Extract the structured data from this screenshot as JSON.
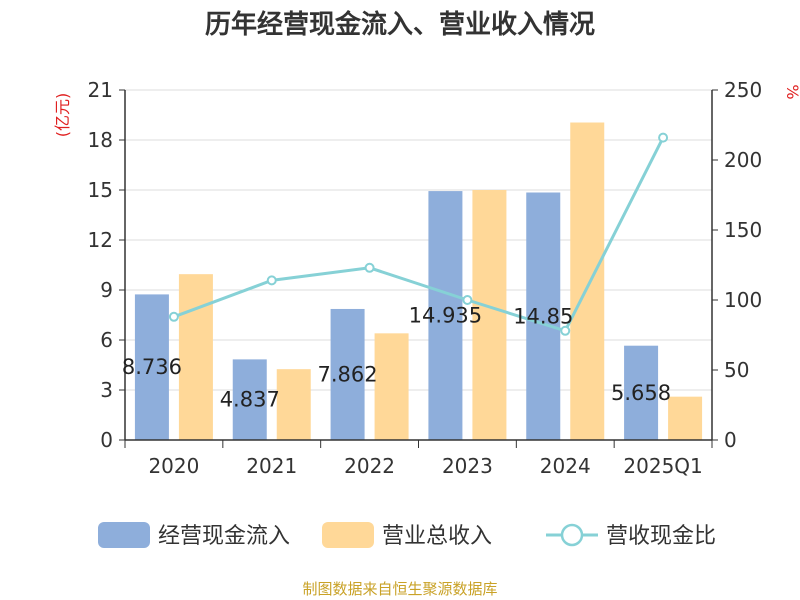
{
  "chart_data": {
    "type": "bar",
    "title": "历年经营现金流入、营业收入情况",
    "categories": [
      "2020",
      "2021",
      "2022",
      "2023",
      "2024",
      "2025Q1"
    ],
    "y_left_label": "(亿元)",
    "y_right_label": "%",
    "y_left_ticks": [
      "0",
      "3",
      "6",
      "9",
      "12",
      "15",
      "18",
      "21"
    ],
    "y_right_ticks": [
      "0",
      "50",
      "100",
      "150",
      "200",
      "250"
    ],
    "ylim_left": [
      0,
      21
    ],
    "ylim_right": [
      0,
      250
    ],
    "grid": true,
    "legend_position": "bottom",
    "series": [
      {
        "name": "经营现金流入",
        "type": "bar",
        "axis": "left",
        "color": "#8eaedb",
        "values": [
          8.736,
          4.837,
          7.862,
          14.935,
          14.85,
          5.658
        ]
      },
      {
        "name": "营业总收入",
        "type": "bar",
        "axis": "left",
        "color": "#ffd898",
        "values": [
          9.95,
          4.25,
          6.4,
          15.0,
          19.05,
          2.6
        ]
      },
      {
        "name": "营收现金比",
        "type": "line",
        "axis": "right",
        "color": "#86d1d6",
        "values": [
          88,
          114,
          123,
          100,
          78,
          216
        ]
      }
    ],
    "data_labels": [
      "8.736",
      "4.837",
      "7.862",
      "14.935",
      "14.85",
      "5.658"
    ]
  },
  "source_text": "制图数据来自恒生聚源数据库",
  "colors": {
    "axis_label_red": "#e02020",
    "source": "#c9a227",
    "text": "#333333",
    "grid": "#dddddd"
  }
}
